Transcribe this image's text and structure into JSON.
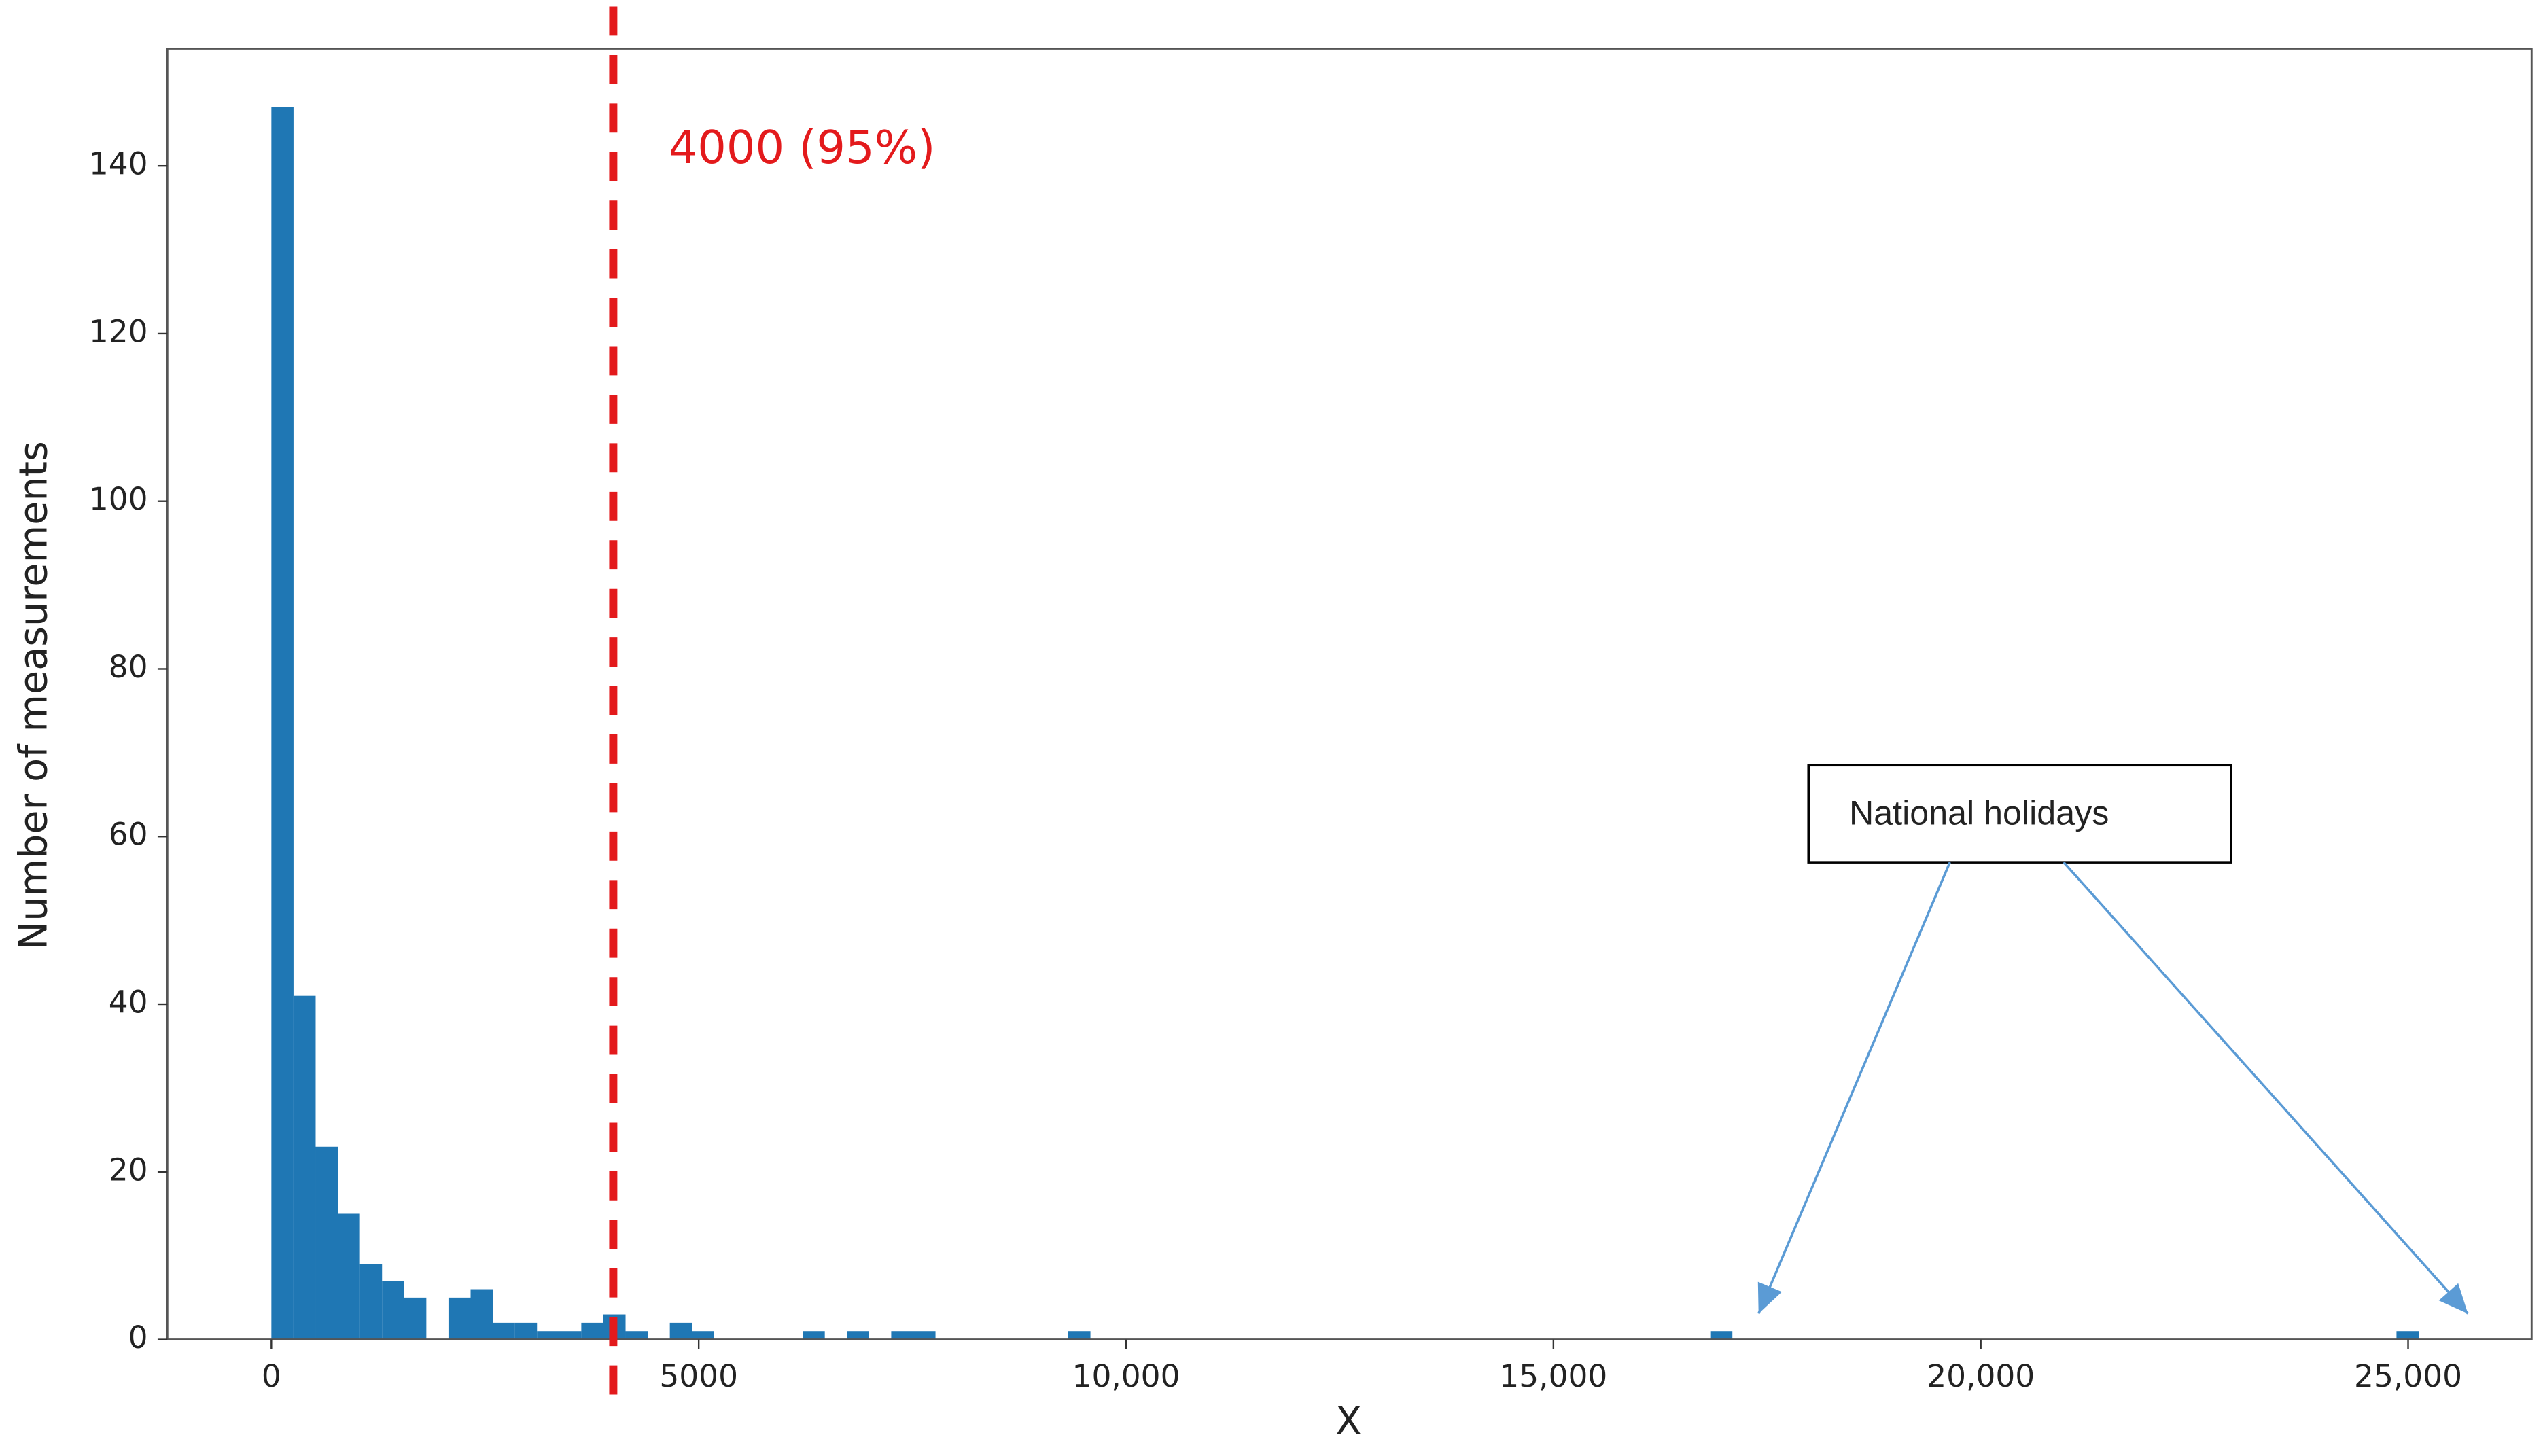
{
  "chart_data": {
    "type": "histogram",
    "xlabel": "X",
    "ylabel": "Number of measurements",
    "color": "#1f77b4",
    "bins": [
      0,
      259,
      518,
      777,
      1036,
      1295,
      1554,
      1813,
      2072,
      2331,
      2590,
      2849,
      3108,
      3367,
      3626,
      3885,
      4144,
      4403,
      4662,
      4921,
      5180,
      5439,
      5698,
      5957,
      6216,
      6475,
      6734,
      6993,
      7252,
      7511,
      7770,
      8029,
      8288,
      8547,
      8806,
      9065,
      9324,
      9583,
      9842,
      10101,
      10360,
      10619,
      10878,
      11137,
      11396,
      11655,
      11914,
      12173,
      12432,
      12691,
      12950,
      13209,
      13468,
      13727,
      13986,
      14245,
      14504,
      14763,
      15022,
      15281,
      15540,
      15799,
      16058,
      16317,
      16576,
      16835,
      17094,
      17353,
      17612,
      17871,
      18130,
      18389,
      18648,
      18907,
      19166,
      19425,
      19684,
      19943,
      20202,
      20461,
      20720,
      20979,
      21238,
      21497,
      21756,
      22015,
      22274,
      22533,
      22792,
      23051,
      23310,
      23569,
      23828,
      24087,
      24346,
      24605,
      24864,
      25123,
      25382,
      25641,
      25900
    ],
    "values": [
      147,
      41,
      23,
      15,
      9,
      7,
      5,
      0,
      5,
      6,
      2,
      2,
      1,
      1,
      2,
      3,
      1,
      0,
      2,
      1,
      0,
      0,
      0,
      0,
      1,
      0,
      1,
      0,
      1,
      1,
      0,
      0,
      0,
      0,
      0,
      0,
      1,
      0,
      0,
      0,
      0,
      0,
      0,
      0,
      0,
      0,
      0,
      0,
      0,
      0,
      0,
      0,
      0,
      0,
      0,
      0,
      0,
      0,
      0,
      0,
      0,
      0,
      0,
      0,
      0,
      1,
      0,
      0,
      0,
      0,
      0,
      0,
      0,
      0,
      0,
      0,
      0,
      0,
      0,
      0,
      0,
      0,
      0,
      0,
      0,
      0,
      0,
      0,
      0,
      0,
      0,
      0,
      0,
      0,
      0,
      0,
      1,
      0,
      0,
      0
    ],
    "xlim": [
      -1217,
      26445
    ],
    "ylim": [
      0,
      154
    ],
    "xticks": [
      0,
      5000,
      {
        "value": 10000,
        "label": "10,000"
      },
      {
        "value": 15000,
        "label": "15,000"
      },
      {
        "value": 20000,
        "label": "20,000"
      },
      {
        "value": 25000,
        "label": "25,000"
      }
    ],
    "yticks": [
      0,
      20,
      40,
      60,
      80,
      100,
      120,
      140
    ],
    "vline": {
      "value": 4000,
      "label": "4000 (95%)",
      "color": "#e31a1c"
    },
    "annotation": {
      "text": "National holidays",
      "arrow_x": [
        17400,
        25700
      ],
      "color": "#5b9bd5"
    }
  }
}
